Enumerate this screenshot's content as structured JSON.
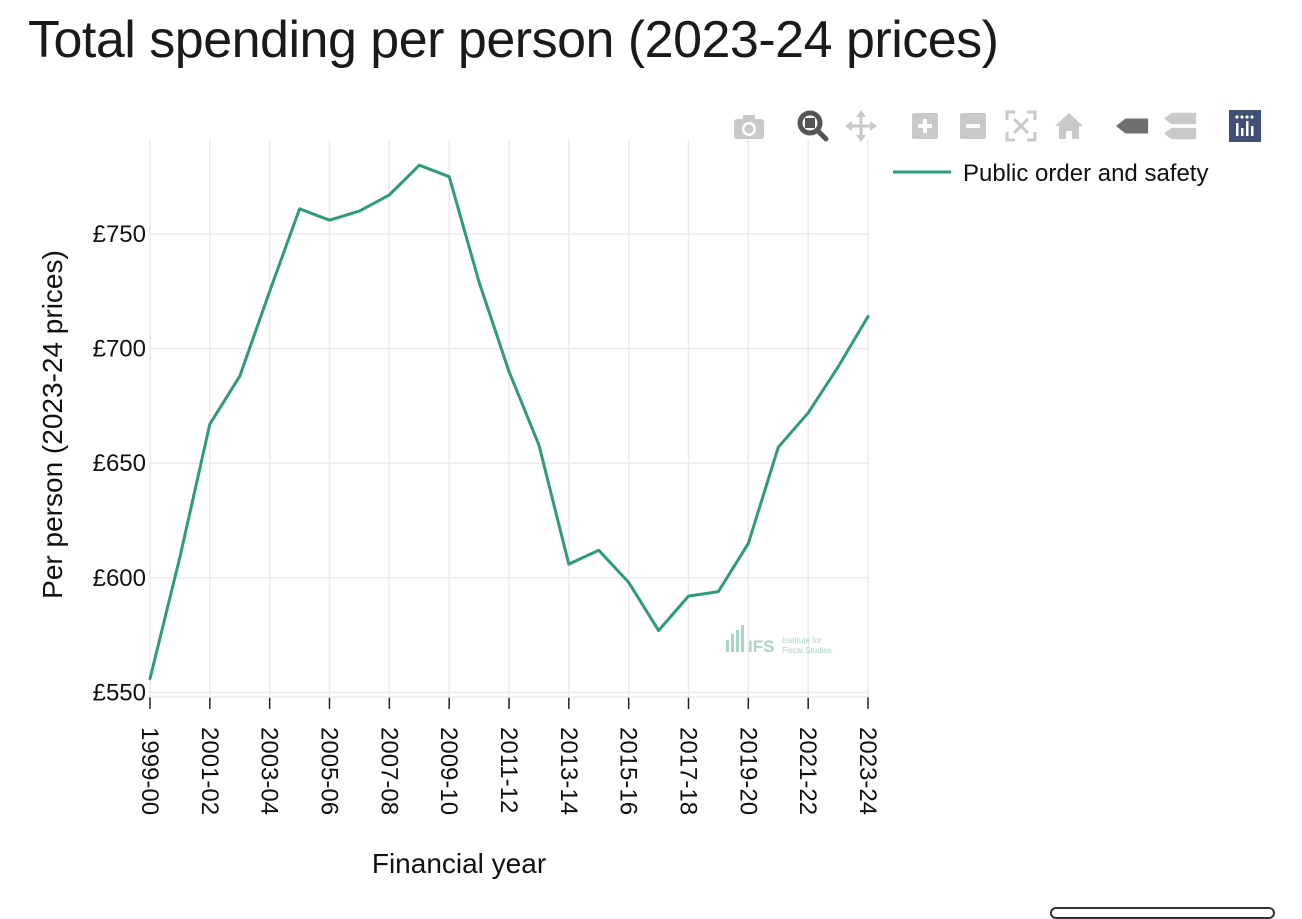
{
  "page": {
    "title": "Total spending per person (2023-24 prices)"
  },
  "modebar": {
    "buttons": [
      {
        "name": "camera-icon",
        "label": "Download plot as a png"
      },
      {
        "name": "zoom-icon",
        "label": "Zoom"
      },
      {
        "name": "pan-icon",
        "label": "Pan"
      },
      {
        "name": "zoom-in-icon",
        "label": "Zoom in"
      },
      {
        "name": "zoom-out-icon",
        "label": "Zoom out"
      },
      {
        "name": "autoscale-icon",
        "label": "Autoscale"
      },
      {
        "name": "home-icon",
        "label": "Reset axes"
      },
      {
        "name": "hover-closest-icon",
        "label": "Show closest data on hover"
      },
      {
        "name": "hover-compare-icon",
        "label": "Compare data on hover"
      },
      {
        "name": "plotly-logo-icon",
        "label": "Produced with Plotly"
      }
    ]
  },
  "watermark": {
    "logo": "IFS",
    "subtitle": "Institute for Fiscal Studies"
  },
  "chart_data": {
    "type": "line",
    "xlabel": "Financial year",
    "ylabel": "Per person (2023-24 prices)",
    "x": [
      "1999-00",
      "2000-01",
      "2001-02",
      "2002-03",
      "2003-04",
      "2004-05",
      "2005-06",
      "2006-07",
      "2007-08",
      "2008-09",
      "2009-10",
      "2010-11",
      "2011-12",
      "2012-13",
      "2013-14",
      "2014-15",
      "2015-16",
      "2016-17",
      "2017-18",
      "2018-19",
      "2019-20",
      "2020-21",
      "2021-22",
      "2022-23",
      "2023-24"
    ],
    "x_ticks": [
      "1999-00",
      "2001-02",
      "2003-04",
      "2005-06",
      "2007-08",
      "2009-10",
      "2011-12",
      "2013-14",
      "2015-16",
      "2017-18",
      "2019-20",
      "2021-22",
      "2023-24"
    ],
    "y_ticks": [
      550,
      600,
      650,
      700,
      750
    ],
    "y_tick_labels": [
      "£550",
      "£600",
      "£650",
      "£700",
      "£750"
    ],
    "ylim": [
      548,
      791
    ],
    "grid": true,
    "legend_position": "top-right",
    "series": [
      {
        "name": "Public order and safety",
        "color": "#2e9c78",
        "values": [
          556,
          609,
          667,
          688,
          725,
          761,
          756,
          760,
          767,
          780,
          775,
          729,
          690,
          658,
          606,
          612,
          598,
          577,
          592,
          594,
          615,
          657,
          672,
          692,
          714
        ]
      }
    ]
  }
}
